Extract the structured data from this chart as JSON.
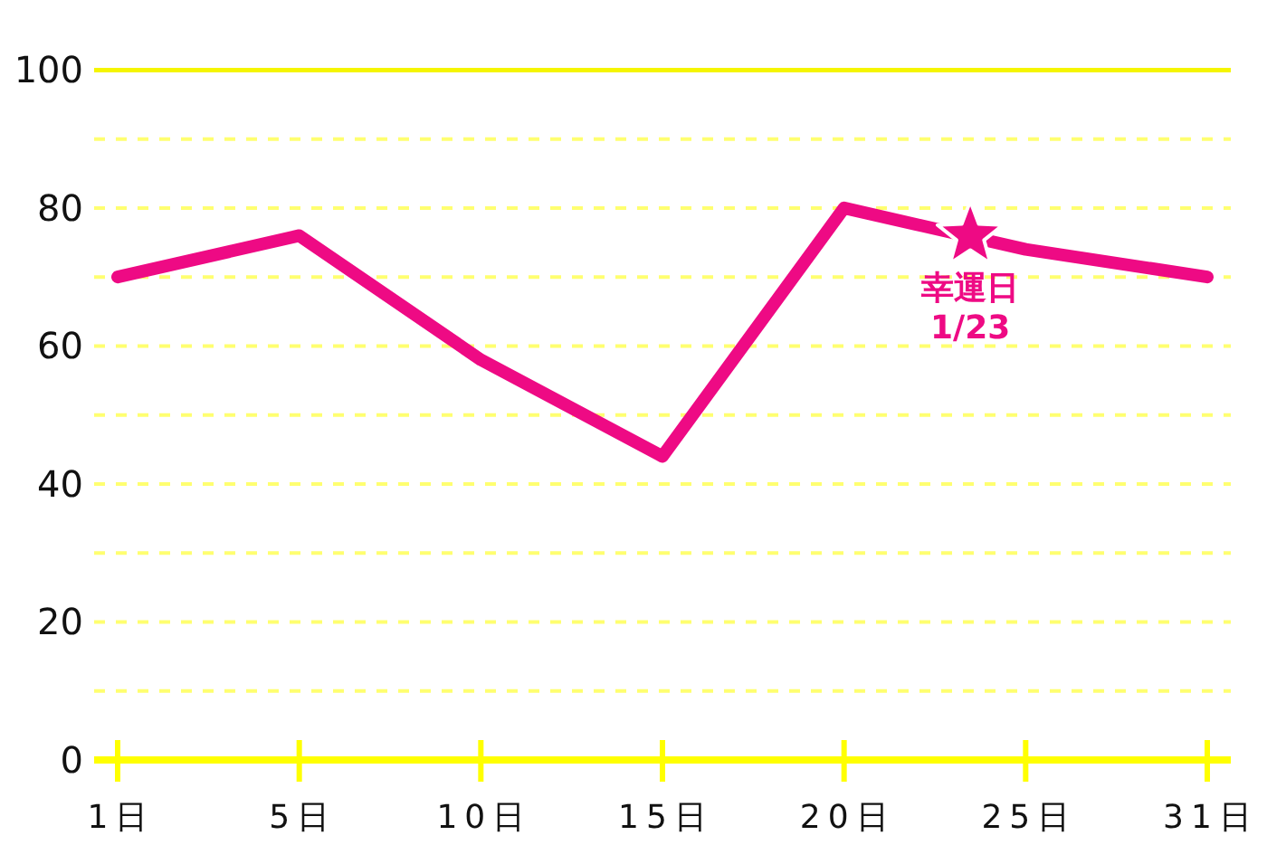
{
  "chart_data": {
    "type": "line",
    "categories": [
      "1日",
      "5日",
      "10日",
      "15日",
      "20日",
      "25日",
      "31日"
    ],
    "series": [
      {
        "color": "#ee0a84",
        "values": [
          70,
          76,
          58,
          44,
          80,
          74,
          70
        ]
      }
    ],
    "ylim": [
      0,
      100
    ],
    "yticks": [
      0,
      {
        "value": 10,
        "label": null
      },
      20,
      {
        "value": 30,
        "label": null
      },
      40,
      {
        "value": 50,
        "label": null
      },
      60,
      {
        "value": 70,
        "label": null
      },
      80,
      {
        "value": 90,
        "label": null
      },
      100
    ],
    "grid": "y",
    "annotations": [
      {
        "text": "幸運日\n1/23",
        "y": 76
      }
    ]
  }
}
